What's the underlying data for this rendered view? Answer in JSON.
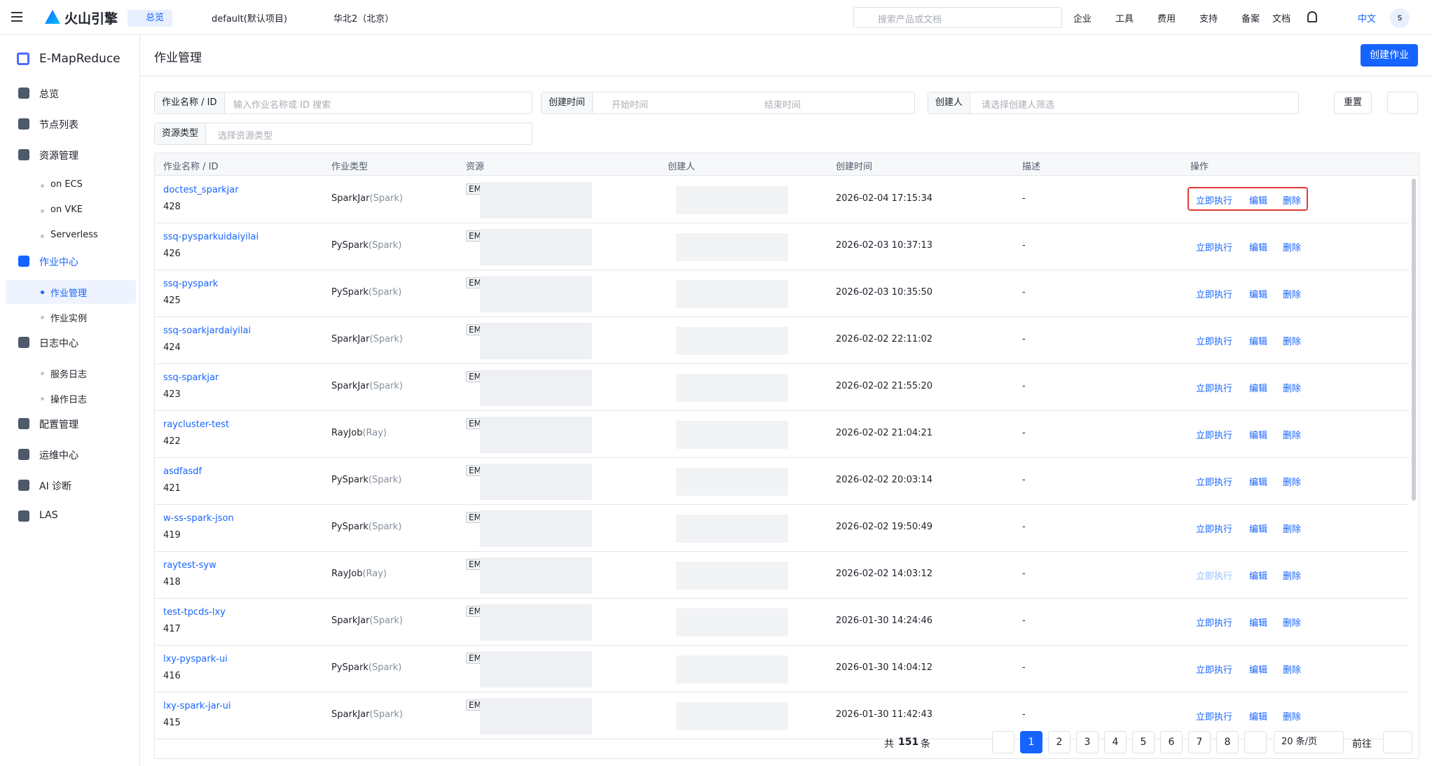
{
  "header": {
    "brand": "火山引擎",
    "home": "总览",
    "project": "default(默认项目)",
    "region": "华北2（北京）",
    "search_placeholder": "搜索产品或文档",
    "menus": [
      "企业",
      "工具",
      "费用",
      "支持",
      "备案",
      "文档"
    ],
    "lang": "中文",
    "avatar": "s"
  },
  "sidebar": {
    "product": "E-MapReduce",
    "items": [
      {
        "label": "总览"
      },
      {
        "label": "节点列表"
      },
      {
        "label": "资源管理",
        "children": [
          "on ECS",
          "on VKE",
          "Serverless"
        ]
      },
      {
        "label": "作业中心",
        "children": [
          "作业管理",
          "作业实例"
        ]
      },
      {
        "label": "日志中心",
        "children": [
          "服务日志",
          "操作日志"
        ]
      },
      {
        "label": "配置管理"
      },
      {
        "label": "运维中心"
      },
      {
        "label": "AI 诊断"
      },
      {
        "label": "LAS"
      }
    ]
  },
  "main": {
    "title": "作业管理",
    "create_button": "创建作业",
    "filters": {
      "name_label": "作业名称 / ID",
      "name_placeholder": "输入作业名称或 ID 搜索",
      "time_label": "创建时间",
      "start_placeholder": "开始时间",
      "end_placeholder": "结束时间",
      "creator_label": "创建人",
      "creator_placeholder": "请选择创建人筛选",
      "resource_label": "资源类型",
      "resource_placeholder": "选择资源类型",
      "reset": "重置"
    }
  },
  "table": {
    "columns": [
      "作业名称 / ID",
      "作业类型",
      "资源",
      "创建人",
      "创建时间",
      "描述",
      "操作"
    ],
    "actions": [
      "立即执行",
      "编辑",
      "删除"
    ],
    "rows": [
      {
        "name": "doctest_sparkjar",
        "id": "428",
        "type": "SparkJar",
        "engine": "(Spark)",
        "resource": "EM",
        "created": "2026-02-04 17:15:34",
        "desc": "-"
      },
      {
        "name": "ssq-pysparkuidaiyilai",
        "id": "426",
        "type": "PySpark",
        "engine": "(Spark)",
        "resource": "EM",
        "created": "2026-02-03 10:37:13",
        "desc": "-"
      },
      {
        "name": "ssq-pyspark",
        "id": "425",
        "type": "PySpark",
        "engine": "(Spark)",
        "resource": "EM",
        "created": "2026-02-03 10:35:50",
        "desc": "-"
      },
      {
        "name": "ssq-soarkjardaiyilai",
        "id": "424",
        "type": "SparkJar",
        "engine": "(Spark)",
        "resource": "EM",
        "created": "2026-02-02 22:11:02",
        "desc": "-"
      },
      {
        "name": "ssq-sparkjar",
        "id": "423",
        "type": "SparkJar",
        "engine": "(Spark)",
        "resource": "EM",
        "created": "2026-02-02 21:55:20",
        "desc": "-"
      },
      {
        "name": "raycluster-test",
        "id": "422",
        "type": "RayJob",
        "engine": "(Ray)",
        "resource": "EM",
        "created": "2026-02-02 21:04:21",
        "desc": "-"
      },
      {
        "name": "asdfasdf",
        "id": "421",
        "type": "PySpark",
        "engine": "(Spark)",
        "resource": "EM",
        "created": "2026-02-02 20:03:14",
        "desc": "-"
      },
      {
        "name": "w-ss-spark-json",
        "id": "419",
        "type": "PySpark",
        "engine": "(Spark)",
        "resource": "EM",
        "created": "2026-02-02 19:50:49",
        "desc": "-"
      },
      {
        "name": "raytest-syw",
        "id": "418",
        "type": "RayJob",
        "engine": "(Ray)",
        "resource": "EM",
        "created": "2026-02-02 14:03:12",
        "desc": "-",
        "run_disabled": true
      },
      {
        "name": "test-tpcds-lxy",
        "id": "417",
        "type": "SparkJar",
        "engine": "(Spark)",
        "resource": "EM",
        "created": "2026-01-30 14:24:46",
        "desc": "-"
      },
      {
        "name": "lxy-pyspark-ui",
        "id": "416",
        "type": "PySpark",
        "engine": "(Spark)",
        "resource": "EM",
        "created": "2026-01-30 14:04:12",
        "desc": "-"
      },
      {
        "name": "lxy-spark-jar-ui",
        "id": "415",
        "type": "SparkJar",
        "engine": "(Spark)",
        "resource": "EM",
        "created": "2026-01-30 11:42:43",
        "desc": "-"
      }
    ]
  },
  "pagination": {
    "total_prefix": "共",
    "total": 151,
    "total_suffix": "条",
    "pages": [
      1,
      2,
      3,
      4,
      5,
      6,
      7,
      8
    ],
    "current": 1,
    "page_size": "20 条/页",
    "goto": "前往"
  }
}
